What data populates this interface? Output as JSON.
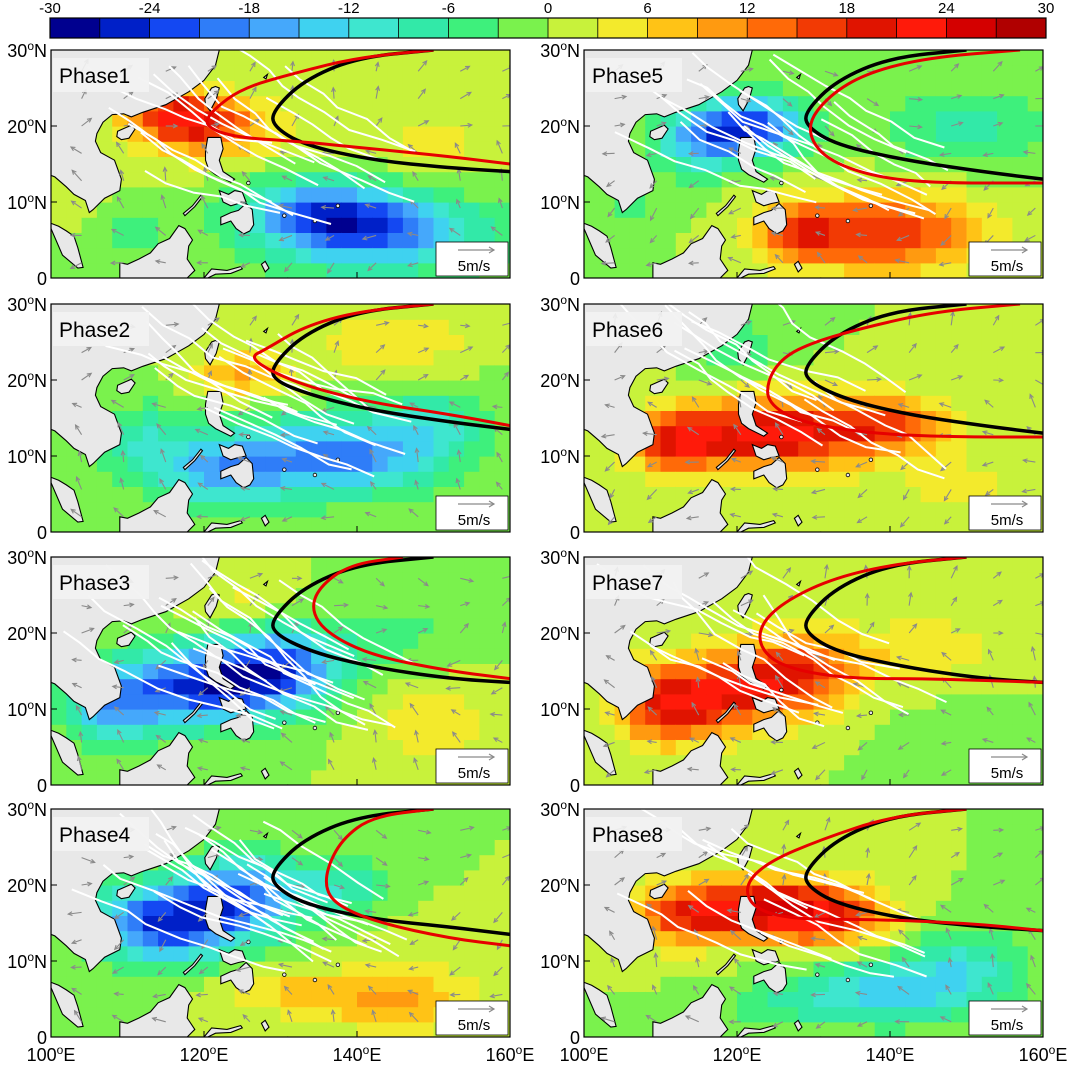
{
  "chart_data": {
    "type": "heatmap",
    "colorbar": {
      "min": -30,
      "max": 30,
      "step": 3,
      "tick_labels": [
        "-30",
        "-24",
        "-18",
        "-12",
        "-6",
        "0",
        "6",
        "12",
        "18",
        "24",
        "30"
      ],
      "colors": [
        "#00008f",
        "#0020c8",
        "#1448f2",
        "#2f7df8",
        "#45a8fb",
        "#3fd2f0",
        "#3ee6cf",
        "#32e9a8",
        "#3ef07c",
        "#7af24d",
        "#c8f23b",
        "#f3ea2c",
        "#ffc316",
        "#ff9a10",
        "#ff6a08",
        "#f23a04",
        "#e01400",
        "#ff1a0a",
        "#d40000",
        "#b00000"
      ]
    },
    "x_ticks": [
      {
        "v": 100,
        "label": "100°E"
      },
      {
        "v": 120,
        "label": "120°E"
      },
      {
        "v": 140,
        "label": "140°E"
      },
      {
        "v": 160,
        "label": "160°E"
      }
    ],
    "y_ticks": [
      {
        "v": 0,
        "label": "0"
      },
      {
        "v": 10,
        "label": "10°N"
      },
      {
        "v": 20,
        "label": "20°N"
      },
      {
        "v": 30,
        "label": "30°N"
      }
    ],
    "xlim": [
      100,
      160
    ],
    "ylim": [
      0,
      30
    ],
    "scale_vector_label": "5m/s",
    "panels": [
      {
        "name": "Phase1",
        "blobs": [
          [
            120,
            20,
            9,
            4,
            16
          ],
          [
            116,
            22,
            6,
            3,
            12
          ],
          [
            142,
            6,
            14,
            5,
            -20
          ],
          [
            135,
            9,
            10,
            4,
            -14
          ],
          [
            110,
            6,
            6,
            4,
            -4
          ],
          [
            150,
            18,
            8,
            5,
            4
          ],
          [
            104,
            10,
            5,
            4,
            2
          ]
        ],
        "red": [
          [
            150,
            30
          ],
          [
            140,
            29
          ],
          [
            132,
            27
          ],
          [
            125,
            25
          ],
          [
            121,
            22
          ],
          [
            120,
            20
          ],
          [
            124,
            18.5
          ],
          [
            132,
            18
          ],
          [
            142,
            17
          ],
          [
            152,
            16
          ],
          [
            160,
            15
          ]
        ],
        "black": [
          [
            150,
            30
          ],
          [
            140,
            29
          ],
          [
            133,
            26
          ],
          [
            129,
            22
          ],
          [
            129,
            20
          ],
          [
            133,
            17.5
          ],
          [
            142,
            15.5
          ],
          [
            152,
            14.5
          ],
          [
            160,
            14
          ]
        ],
        "tracks": 14
      },
      {
        "name": "Phase2",
        "blobs": [
          [
            137,
            10,
            12,
            5,
            -20
          ],
          [
            122,
            8,
            8,
            5,
            -14
          ],
          [
            112,
            12,
            6,
            5,
            -8
          ],
          [
            125,
            21,
            6,
            3,
            10
          ],
          [
            145,
            25,
            10,
            4,
            6
          ],
          [
            150,
            14,
            8,
            5,
            -8
          ]
        ],
        "red": [
          [
            150,
            30
          ],
          [
            140,
            29
          ],
          [
            133,
            27
          ],
          [
            128,
            24
          ],
          [
            126,
            23
          ],
          [
            129,
            21
          ],
          [
            134,
            19
          ],
          [
            142,
            17
          ],
          [
            152,
            15.5
          ],
          [
            160,
            14
          ]
        ],
        "black": [
          [
            150,
            30
          ],
          [
            140,
            29
          ],
          [
            133,
            26
          ],
          [
            129,
            22
          ],
          [
            129,
            20
          ],
          [
            134,
            18
          ],
          [
            142,
            16
          ],
          [
            152,
            14.5
          ],
          [
            160,
            13.5
          ]
        ],
        "tracks": 16
      },
      {
        "name": "Phase3",
        "blobs": [
          [
            120,
            13,
            11,
            5,
            -24
          ],
          [
            130,
            16,
            8,
            5,
            -18
          ],
          [
            108,
            10,
            6,
            5,
            -14
          ],
          [
            145,
            20,
            8,
            5,
            -4
          ],
          [
            150,
            8,
            8,
            5,
            6
          ],
          [
            125,
            24,
            6,
            3,
            4
          ]
        ],
        "red": [
          [
            146,
            30
          ],
          [
            139,
            29
          ],
          [
            135,
            26
          ],
          [
            134,
            23
          ],
          [
            136,
            20
          ],
          [
            142,
            17
          ],
          [
            152,
            15
          ],
          [
            160,
            14
          ]
        ],
        "black": [
          [
            150,
            30
          ],
          [
            140,
            29
          ],
          [
            133,
            26
          ],
          [
            129,
            22
          ],
          [
            129,
            20
          ],
          [
            134,
            17.5
          ],
          [
            142,
            15.5
          ],
          [
            152,
            14
          ],
          [
            160,
            13.5
          ]
        ],
        "tracks": 18
      },
      {
        "name": "Phase4",
        "blobs": [
          [
            115,
            15,
            10,
            5,
            -24
          ],
          [
            125,
            19,
            8,
            5,
            -18
          ],
          [
            138,
            20,
            6,
            4,
            -8
          ],
          [
            145,
            5,
            10,
            4,
            10
          ],
          [
            130,
            6,
            8,
            3,
            6
          ],
          [
            150,
            12,
            8,
            4,
            2
          ]
        ],
        "red": [
          [
            150,
            30
          ],
          [
            142,
            29
          ],
          [
            138,
            26
          ],
          [
            136,
            22
          ],
          [
            136,
            19
          ],
          [
            138,
            17
          ],
          [
            143,
            15
          ],
          [
            152,
            13
          ],
          [
            160,
            12
          ]
        ],
        "black": [
          [
            150,
            30
          ],
          [
            140,
            29
          ],
          [
            133,
            26
          ],
          [
            129,
            22
          ],
          [
            129,
            20
          ],
          [
            133,
            17.5
          ],
          [
            142,
            15.5
          ],
          [
            152,
            14.5
          ],
          [
            160,
            13.5
          ]
        ],
        "tracks": 22
      },
      {
        "name": "Phase5",
        "blobs": [
          [
            122,
            20,
            7,
            4,
            -22
          ],
          [
            115,
            18,
            6,
            4,
            -14
          ],
          [
            140,
            6,
            12,
            5,
            18
          ],
          [
            128,
            6,
            6,
            4,
            12
          ],
          [
            150,
            20,
            10,
            5,
            -8
          ],
          [
            106,
            10,
            5,
            4,
            -4
          ]
        ],
        "red": [
          [
            157,
            30
          ],
          [
            145,
            29
          ],
          [
            137,
            27
          ],
          [
            132,
            24
          ],
          [
            129,
            20
          ],
          [
            131,
            16
          ],
          [
            137,
            13.5
          ],
          [
            145,
            12.5
          ],
          [
            160,
            12.5
          ]
        ],
        "black": [
          [
            150,
            30
          ],
          [
            140,
            29
          ],
          [
            133,
            26
          ],
          [
            129,
            22
          ],
          [
            129,
            20
          ],
          [
            133,
            17.5
          ],
          [
            142,
            15.5
          ],
          [
            152,
            14
          ],
          [
            160,
            13
          ]
        ],
        "tracks": 16
      },
      {
        "name": "Phase6",
        "blobs": [
          [
            125,
            13,
            11,
            5,
            22
          ],
          [
            112,
            12,
            6,
            4,
            18
          ],
          [
            140,
            14,
            8,
            4,
            14
          ],
          [
            120,
            24,
            6,
            4,
            -6
          ],
          [
            150,
            6,
            10,
            4,
            4
          ]
        ],
        "red": [
          [
            157,
            30
          ],
          [
            146,
            29
          ],
          [
            137,
            27
          ],
          [
            130,
            25
          ],
          [
            126,
            23
          ],
          [
            124,
            20
          ],
          [
            124,
            17
          ],
          [
            128,
            14.5
          ],
          [
            137,
            13
          ],
          [
            148,
            12.5
          ],
          [
            160,
            12.5
          ]
        ],
        "black": [
          [
            150,
            30
          ],
          [
            140,
            29
          ],
          [
            133,
            26
          ],
          [
            129,
            22
          ],
          [
            129,
            20
          ],
          [
            134,
            17.5
          ],
          [
            142,
            15.5
          ],
          [
            152,
            14
          ],
          [
            160,
            13
          ]
        ],
        "tracks": 12
      },
      {
        "name": "Phase7",
        "blobs": [
          [
            118,
            12,
            9,
            5,
            18
          ],
          [
            128,
            15,
            8,
            5,
            16
          ],
          [
            110,
            10,
            6,
            5,
            14
          ],
          [
            145,
            18,
            10,
            4,
            6
          ],
          [
            150,
            6,
            10,
            4,
            -2
          ]
        ],
        "red": [
          [
            150,
            30
          ],
          [
            140,
            29
          ],
          [
            132,
            27
          ],
          [
            126,
            24
          ],
          [
            123,
            21
          ],
          [
            123,
            18
          ],
          [
            126,
            15.5
          ],
          [
            134,
            14
          ],
          [
            145,
            14
          ],
          [
            160,
            13.5
          ]
        ],
        "black": [
          [
            150,
            30
          ],
          [
            140,
            29
          ],
          [
            133,
            26
          ],
          [
            129,
            22
          ],
          [
            129,
            20
          ],
          [
            133,
            17.5
          ],
          [
            142,
            15.5
          ],
          [
            152,
            14
          ],
          [
            160,
            13.5
          ]
        ],
        "tracks": 12
      },
      {
        "name": "Phase8",
        "blobs": [
          [
            122,
            17,
            10,
            4,
            20
          ],
          [
            132,
            16,
            8,
            4,
            16
          ],
          [
            112,
            16,
            6,
            4,
            12
          ],
          [
            140,
            6,
            12,
            4,
            -14
          ],
          [
            150,
            10,
            8,
            5,
            -8
          ],
          [
            125,
            4,
            8,
            3,
            -4
          ]
        ],
        "red": [
          [
            150,
            30
          ],
          [
            140,
            29
          ],
          [
            131,
            26
          ],
          [
            124,
            23
          ],
          [
            121,
            20
          ],
          [
            122,
            17
          ],
          [
            127,
            15.5
          ],
          [
            137,
            15.5
          ],
          [
            150,
            15
          ],
          [
            160,
            14
          ]
        ],
        "black": [
          [
            150,
            30
          ],
          [
            140,
            29
          ],
          [
            133,
            26
          ],
          [
            129,
            22
          ],
          [
            129,
            20
          ],
          [
            133,
            17.5
          ],
          [
            142,
            15.5
          ],
          [
            152,
            14.5
          ],
          [
            160,
            14
          ]
        ],
        "tracks": 10
      }
    ]
  }
}
